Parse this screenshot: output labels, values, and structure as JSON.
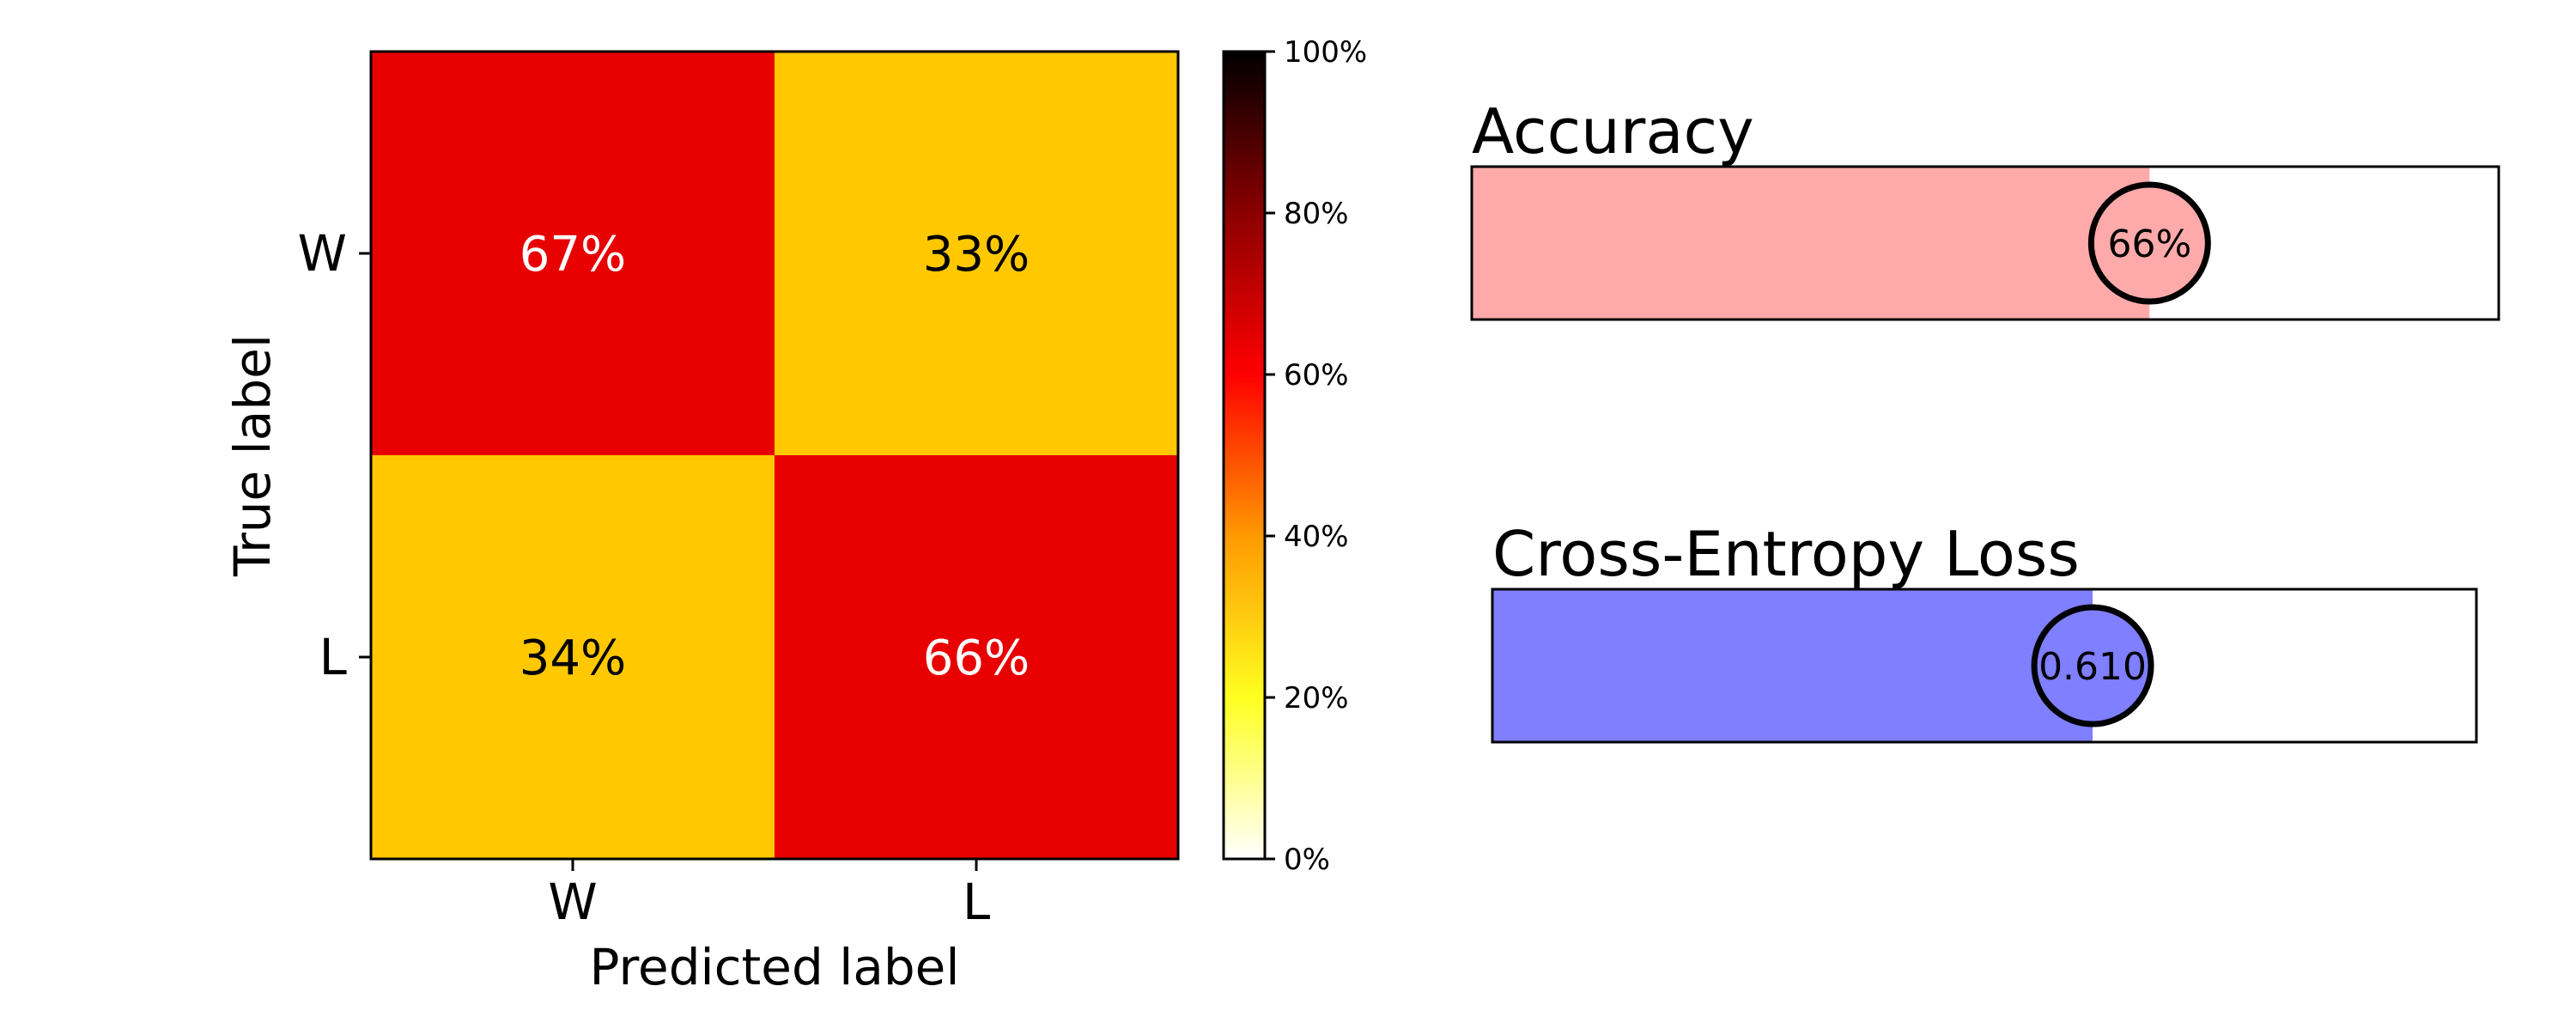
{
  "chart_data": [
    {
      "type": "heatmap",
      "xlabel": "Predicted label",
      "ylabel": "True label",
      "x_categories": [
        "W",
        "L"
      ],
      "y_categories": [
        "W",
        "L"
      ],
      "values": [
        [
          67,
          33
        ],
        [
          34,
          66
        ]
      ],
      "value_labels": [
        [
          "67%",
          "33%"
        ],
        [
          "34%",
          "66%"
        ]
      ],
      "label_colors": [
        [
          "#ffffff",
          "#000000"
        ],
        [
          "#000000",
          "#ffffff"
        ]
      ],
      "cell_colors": [
        [
          "#e80000",
          "#ffc800"
        ],
        [
          "#ffc800",
          "#e80000"
        ]
      ],
      "colorbar": {
        "range": [
          0,
          100
        ],
        "ticks": [
          "0%",
          "20%",
          "40%",
          "60%",
          "80%",
          "100%"
        ],
        "colormap": [
          "#ffffff",
          "#ffff20",
          "#ff9900",
          "#ff0000",
          "#8b0000",
          "#000000"
        ]
      }
    },
    {
      "type": "bar",
      "title": "Accuracy",
      "value": 0.66,
      "value_label": "66%",
      "fill_color": "#ffaaaa"
    },
    {
      "type": "bar",
      "title": "Cross-Entropy Loss",
      "value": 0.61,
      "value_label": "0.610",
      "fill_color": "#7f7fff"
    }
  ]
}
